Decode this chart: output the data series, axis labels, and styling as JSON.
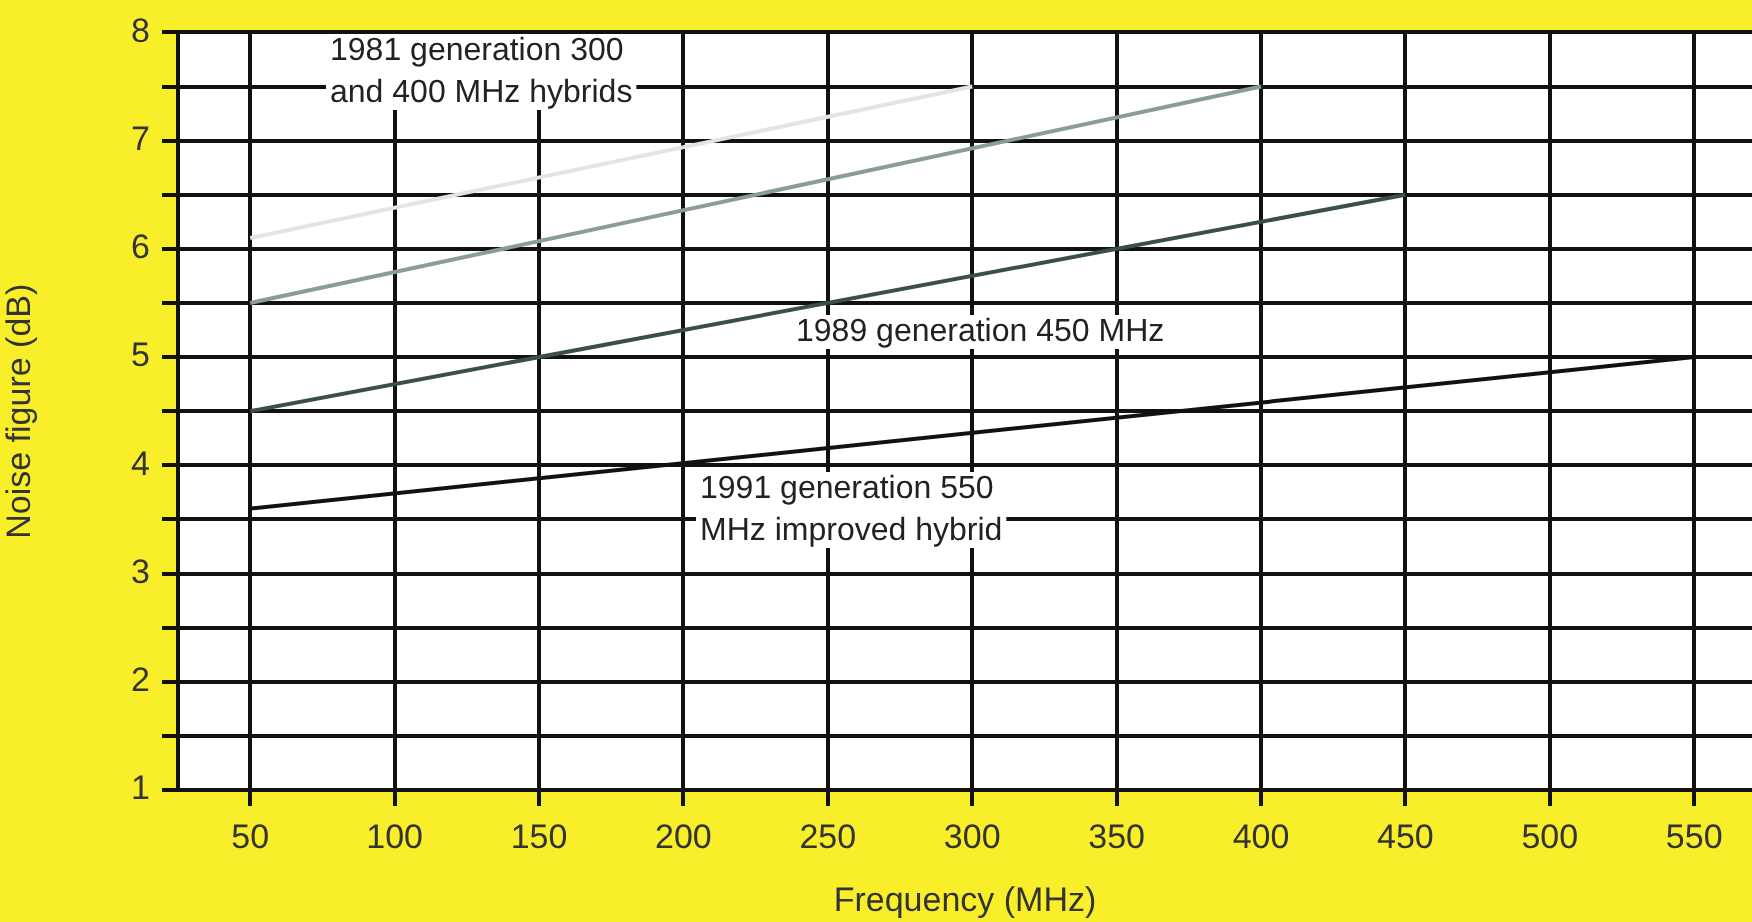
{
  "chart_data": {
    "type": "line",
    "xlabel": "Frequency (MHz)",
    "ylabel": "Noise figure (dB)",
    "xlim": [
      25,
      570
    ],
    "xticks": [
      50,
      100,
      150,
      200,
      250,
      300,
      350,
      400,
      450,
      500,
      550
    ],
    "ylim": [
      1,
      8
    ],
    "yticks": [
      1,
      {
        "value": 1.5,
        "label": null
      },
      2,
      {
        "value": 2.5,
        "label": null
      },
      3,
      {
        "value": 3.5,
        "label": null
      },
      4,
      {
        "value": 4.5,
        "label": null
      },
      5,
      {
        "value": 5.5,
        "label": null
      },
      6,
      {
        "value": 6.5,
        "label": null
      },
      7,
      {
        "value": 7.5,
        "label": null
      },
      8
    ],
    "grid": true,
    "legend": false,
    "marker": "none",
    "line_style": "solid",
    "series": [
      {
        "color": "#e4e4e4",
        "x": [
          50,
          300
        ],
        "values": [
          6.1,
          7.5
        ]
      },
      {
        "color": "#8a9c9a",
        "x": [
          50,
          400
        ],
        "values": [
          5.5,
          7.5
        ]
      },
      {
        "color": "#3a4e4c",
        "x": [
          50,
          450
        ],
        "values": [
          4.5,
          6.5
        ]
      },
      {
        "color": "#111111",
        "x": [
          50,
          550
        ],
        "values": [
          3.6,
          5.0
        ]
      }
    ],
    "annotations": [
      "1981 generation 300 and 400 MHz hybrids",
      "1989 generation 450 MHz",
      "1991 generation 550 MHz improved hybrid"
    ]
  }
}
